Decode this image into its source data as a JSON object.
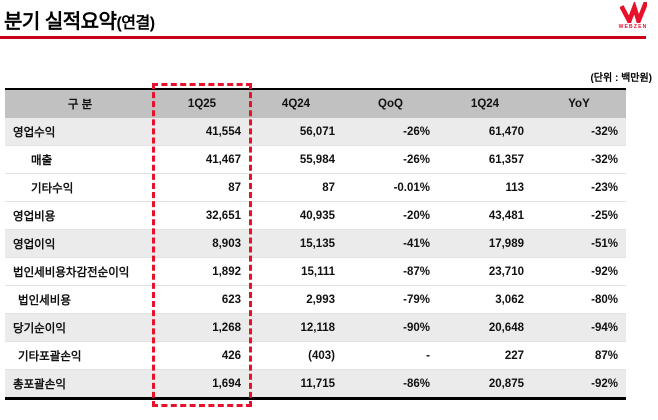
{
  "header": {
    "title": "분기 실적요약",
    "title_paren": "(연결)",
    "logo": {
      "brand": "WEBZEN"
    }
  },
  "unit_note": "(단위 : 백만원)",
  "table": {
    "columns": [
      "구 분",
      "1Q25",
      "4Q24",
      "QoQ",
      "1Q24",
      "YoY"
    ],
    "highlighted_column": "1Q25",
    "rows": [
      {
        "label": "영업수익",
        "indent": 0,
        "highlight": true,
        "values": [
          "41,554",
          "56,071",
          "-26%",
          "61,470",
          "-32%"
        ]
      },
      {
        "label": "매출",
        "indent": 2,
        "highlight": false,
        "values": [
          "41,467",
          "55,984",
          "-26%",
          "61,357",
          "-32%"
        ]
      },
      {
        "label": "기타수익",
        "indent": 2,
        "highlight": false,
        "values": [
          "87",
          "87",
          "-0.01%",
          "113",
          "-23%"
        ]
      },
      {
        "label": "영업비용",
        "indent": 0,
        "highlight": false,
        "values": [
          "32,651",
          "40,935",
          "-20%",
          "43,481",
          "-25%"
        ]
      },
      {
        "label": "영업이익",
        "indent": 0,
        "highlight": true,
        "values": [
          "8,903",
          "15,135",
          "-41%",
          "17,989",
          "-51%"
        ]
      },
      {
        "label": "법인세비용차감전순이익",
        "indent": 0,
        "highlight": false,
        "values": [
          "1,892",
          "15,111",
          "-87%",
          "23,710",
          "-92%"
        ]
      },
      {
        "label": "법인세비용",
        "indent": 1,
        "highlight": false,
        "values": [
          "623",
          "2,993",
          "-79%",
          "3,062",
          "-80%"
        ]
      },
      {
        "label": "당기순이익",
        "indent": 0,
        "highlight": true,
        "values": [
          "1,268",
          "12,118",
          "-90%",
          "20,648",
          "-94%"
        ]
      },
      {
        "label": "기타포괄손익",
        "indent": 1,
        "highlight": false,
        "values": [
          "426",
          "(403)",
          "-",
          "227",
          "87%"
        ]
      },
      {
        "label": "총포괄손익",
        "indent": 0,
        "highlight": true,
        "values": [
          "1,694",
          "11,715",
          "-86%",
          "20,875",
          "-92%"
        ]
      }
    ]
  },
  "colors": {
    "accent_red": "#E8112B",
    "rule_red": "#C9001C",
    "header_gray": "#C1C1C1",
    "highlight_row_gray": "#EBEBEB"
  }
}
